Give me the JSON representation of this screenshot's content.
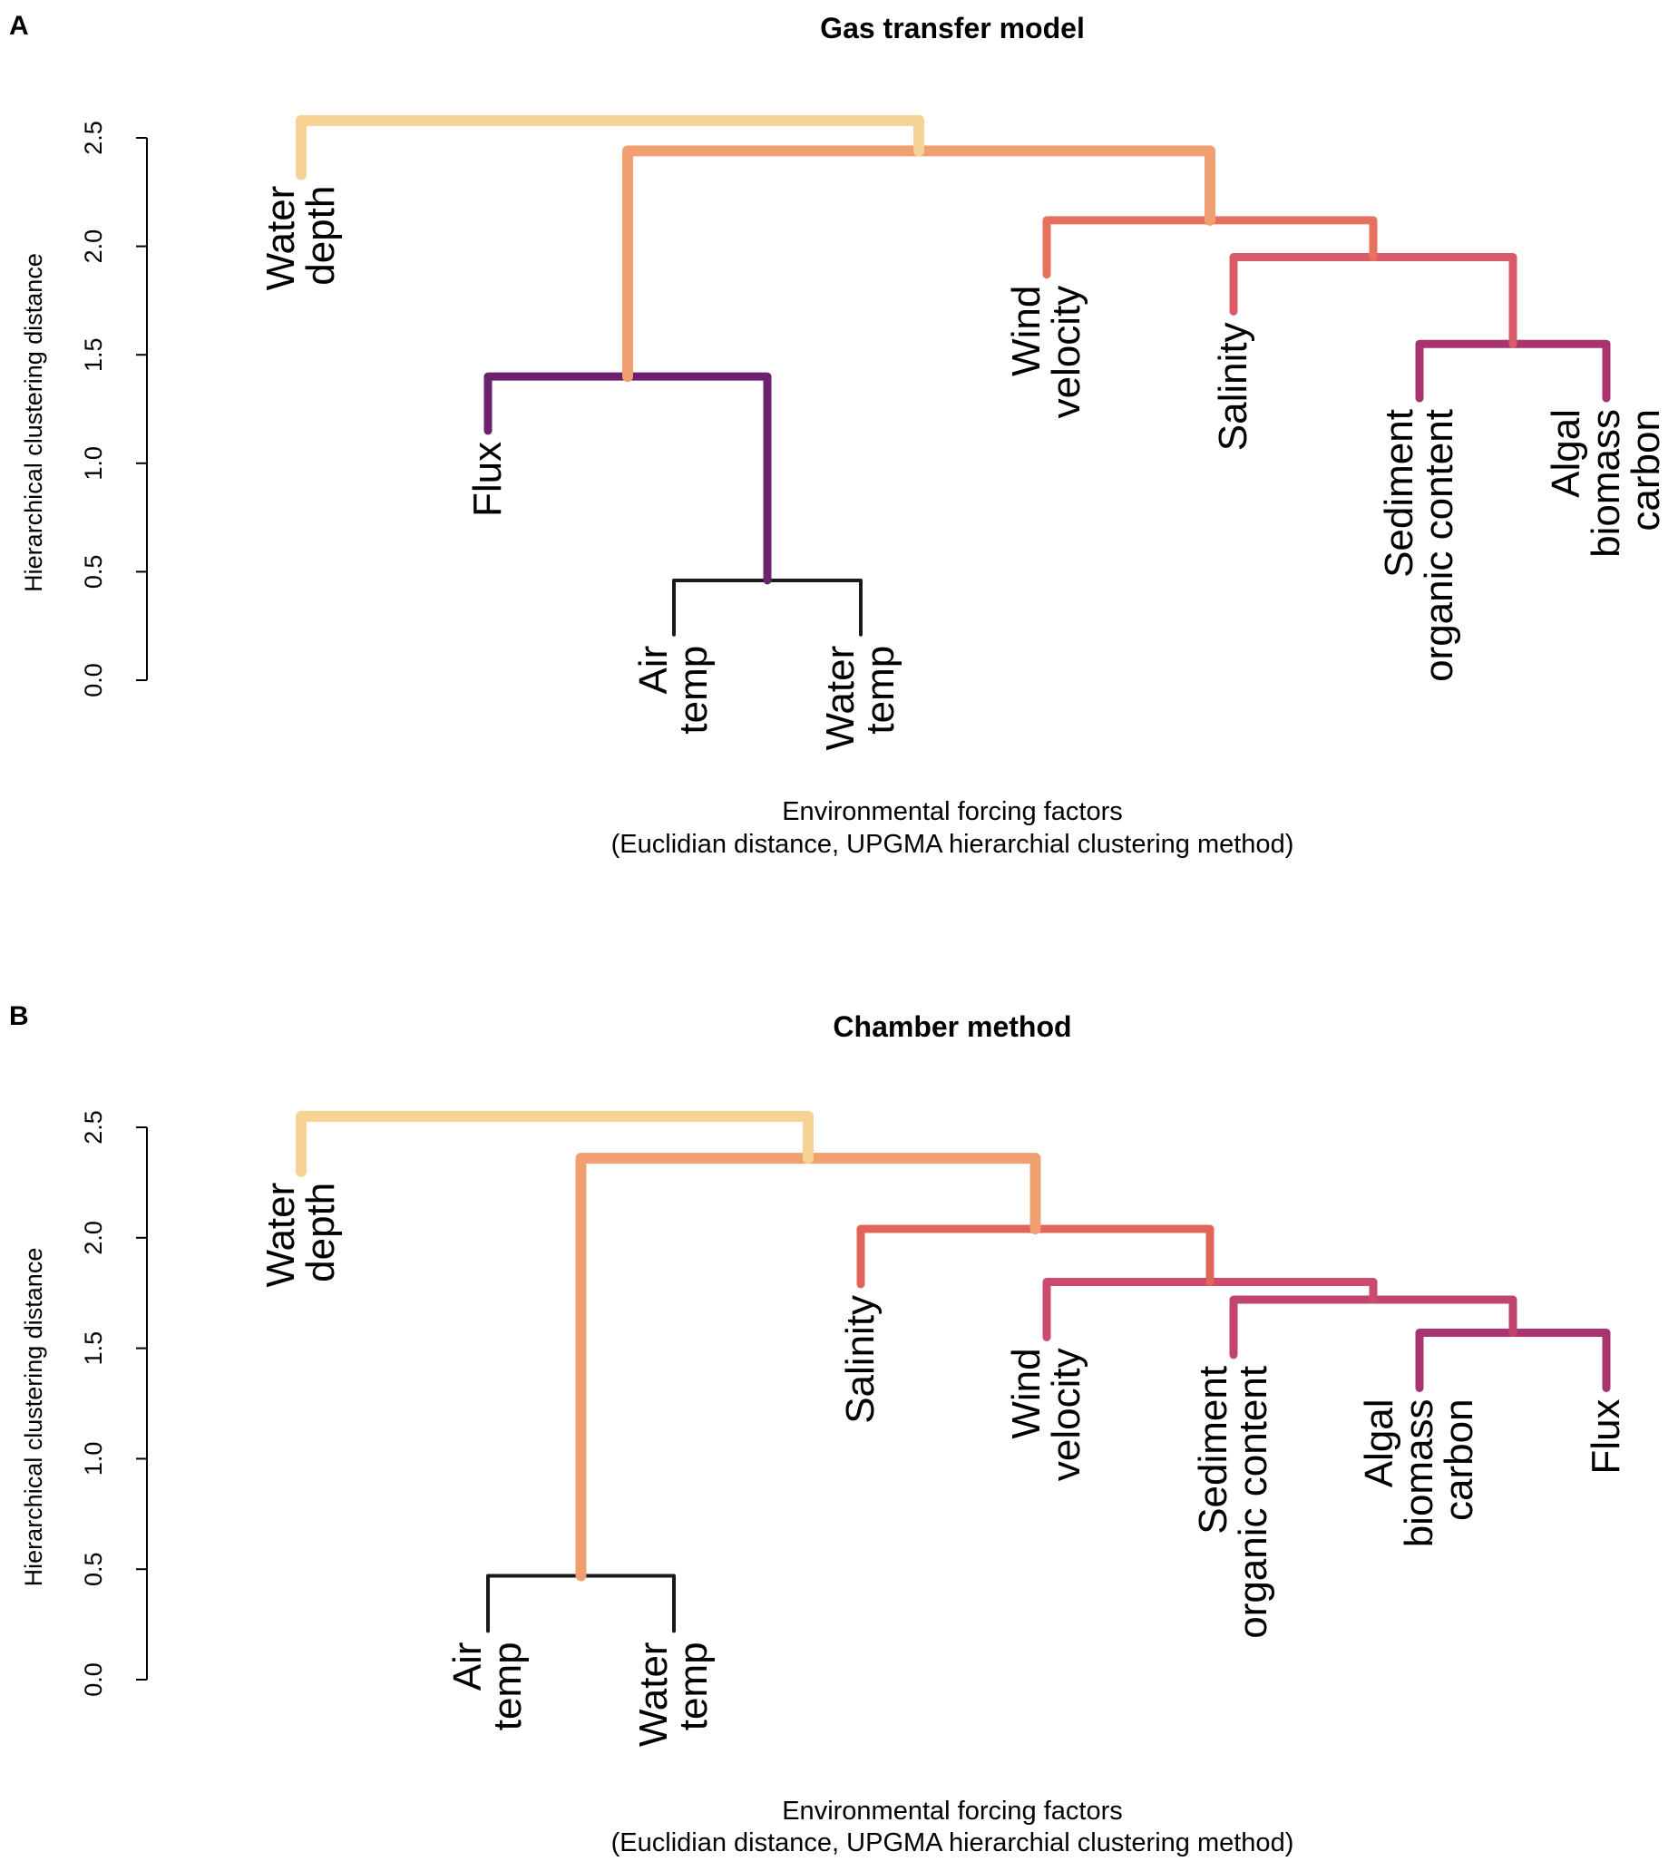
{
  "chart_data": [
    {
      "panel": "A",
      "type": "dendrogram",
      "title": "Gas transfer model",
      "ylabel": "Hierarchical clustering distance",
      "xlabel_lines": [
        "Environmental forcing factors",
        "(Euclidian distance, UPGMA hierarchial clustering method)"
      ],
      "ylim": [
        0,
        2.5
      ],
      "yticks": [
        "0.0",
        "0.5",
        "1.0",
        "1.5",
        "2.0",
        "2.5"
      ],
      "leaves": [
        {
          "id": "L1",
          "lines": [
            "Water",
            "depth"
          ]
        },
        {
          "id": "L2",
          "lines": [
            "Flux"
          ]
        },
        {
          "id": "L3",
          "lines": [
            "Air",
            "temp"
          ]
        },
        {
          "id": "L4",
          "lines": [
            "Water",
            "temp"
          ]
        },
        {
          "id": "L5",
          "lines": [
            "Wind",
            "velocity"
          ]
        },
        {
          "id": "L6",
          "lines": [
            "Salinity"
          ]
        },
        {
          "id": "L7",
          "lines": [
            "Sediment",
            "organic content"
          ]
        },
        {
          "id": "L8",
          "lines": [
            "Algal",
            "biomass",
            "carbon"
          ]
        }
      ],
      "merges": [
        {
          "id": "N1",
          "height": 0.46,
          "left": "L3",
          "right": "L4",
          "color": "#1a1a1a"
        },
        {
          "id": "N2",
          "height": 1.4,
          "left": "L2",
          "right": "N1",
          "color": "#6b2070"
        },
        {
          "id": "N3",
          "height": 1.55,
          "left": "L7",
          "right": "L8",
          "color": "#a8336e"
        },
        {
          "id": "N4",
          "height": 1.95,
          "left": "L6",
          "right": "N3",
          "color": "#d95b6a"
        },
        {
          "id": "N5",
          "height": 2.12,
          "left": "L5",
          "right": "N4",
          "color": "#e8705f"
        },
        {
          "id": "N6",
          "height": 2.44,
          "left": "N2",
          "right": "N5",
          "color": "#f0a070"
        },
        {
          "id": "N7",
          "height": 2.58,
          "left": "L1",
          "right": "N6",
          "color": "#f7d295"
        }
      ]
    },
    {
      "panel": "B",
      "type": "dendrogram",
      "title": "Chamber method",
      "ylabel": "Hierarchical clustering distance",
      "xlabel_lines": [
        "Environmental forcing factors",
        "(Euclidian distance, UPGMA hierarchial clustering method)"
      ],
      "ylim": [
        0,
        2.5
      ],
      "yticks": [
        "0.0",
        "0.5",
        "1.0",
        "1.5",
        "2.0",
        "2.5"
      ],
      "leaves": [
        {
          "id": "L1",
          "lines": [
            "Water",
            "depth"
          ]
        },
        {
          "id": "L2",
          "lines": [
            "Air",
            "temp"
          ]
        },
        {
          "id": "L3",
          "lines": [
            "Water",
            "temp"
          ]
        },
        {
          "id": "L4",
          "lines": [
            "Salinity"
          ]
        },
        {
          "id": "L5",
          "lines": [
            "Wind",
            "velocity"
          ]
        },
        {
          "id": "L6",
          "lines": [
            "Sediment",
            "organic content"
          ]
        },
        {
          "id": "L7",
          "lines": [
            "Algal",
            "biomass",
            "carbon"
          ]
        },
        {
          "id": "L8",
          "lines": [
            "Flux"
          ]
        }
      ],
      "merges": [
        {
          "id": "N1",
          "height": 0.47,
          "left": "L2",
          "right": "L3",
          "color": "#1a1a1a"
        },
        {
          "id": "N2",
          "height": 1.57,
          "left": "L7",
          "right": "L8",
          "color": "#a8336e"
        },
        {
          "id": "N3",
          "height": 1.72,
          "left": "L6",
          "right": "N2",
          "color": "#bf4570"
        },
        {
          "id": "N4",
          "height": 1.8,
          "left": "L5",
          "right": "N3",
          "color": "#cc4a6e"
        },
        {
          "id": "N5",
          "height": 2.04,
          "left": "L4",
          "right": "N4",
          "color": "#e06558"
        },
        {
          "id": "N6",
          "height": 2.36,
          "left": "N1",
          "right": "N5",
          "color": "#f0a070"
        },
        {
          "id": "N7",
          "height": 2.55,
          "left": "L1",
          "right": "N6",
          "color": "#f7d295"
        }
      ]
    }
  ]
}
